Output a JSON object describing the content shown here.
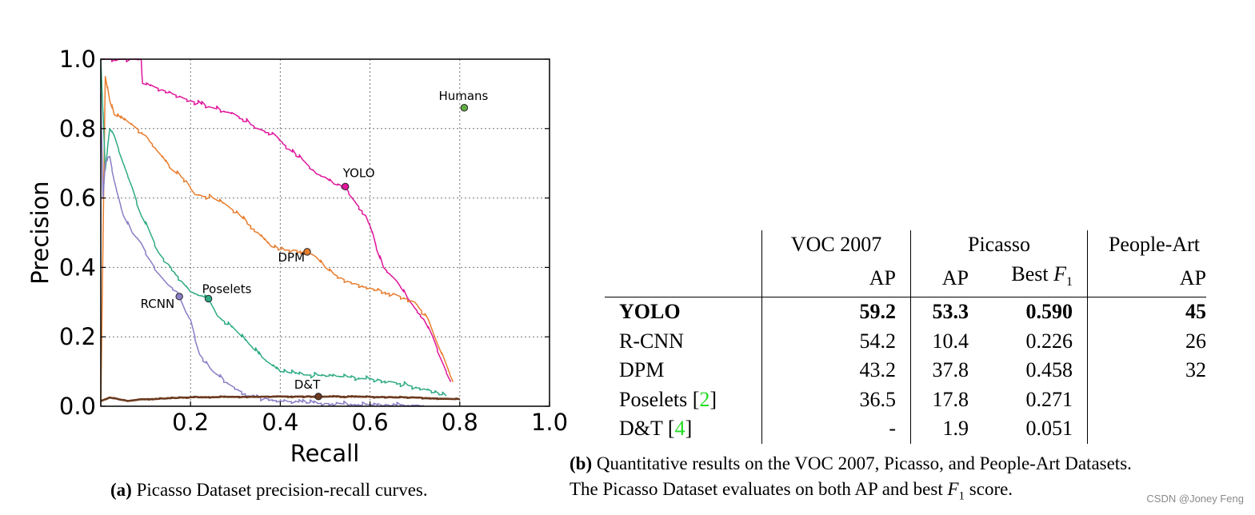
{
  "chart_data": {
    "type": "line",
    "xlabel": "Recall",
    "ylabel": "Precision",
    "xlim": [
      0,
      1.0
    ],
    "ylim": [
      0,
      1.0
    ],
    "xticks": [
      "0.2",
      "0.4",
      "0.6",
      "0.8",
      "1.0"
    ],
    "yticks": [
      "0.0",
      "0.2",
      "0.4",
      "0.6",
      "0.8",
      "1.0"
    ],
    "grid": true,
    "series": [
      {
        "name": "YOLO",
        "color": "#e0169c",
        "x": [
          0.0,
          0.09,
          0.093,
          0.12,
          0.16,
          0.2,
          0.25,
          0.3,
          0.35,
          0.39,
          0.42,
          0.45,
          0.48,
          0.5,
          0.52,
          0.545,
          0.56,
          0.59,
          0.6,
          0.61,
          0.615,
          0.63,
          0.66,
          0.69,
          0.72,
          0.74,
          0.76,
          0.78
        ],
        "y": [
          1.0,
          1.0,
          0.93,
          0.92,
          0.9,
          0.88,
          0.86,
          0.84,
          0.8,
          0.78,
          0.74,
          0.71,
          0.67,
          0.66,
          0.64,
          0.633,
          0.6,
          0.55,
          0.52,
          0.48,
          0.45,
          0.4,
          0.36,
          0.3,
          0.25,
          0.2,
          0.13,
          0.07
        ]
      },
      {
        "name": "DPM",
        "color": "#e87d2e",
        "x": [
          0.0,
          0.01,
          0.02,
          0.03,
          0.06,
          0.1,
          0.13,
          0.16,
          0.18,
          0.19,
          0.21,
          0.25,
          0.28,
          0.31,
          0.35,
          0.38,
          0.41,
          0.43,
          0.46,
          0.48,
          0.5,
          0.52,
          0.55,
          0.6,
          0.66,
          0.7,
          0.73,
          0.75,
          0.77,
          0.785
        ],
        "y": [
          0.0,
          0.95,
          0.88,
          0.84,
          0.82,
          0.78,
          0.73,
          0.68,
          0.66,
          0.65,
          0.61,
          0.6,
          0.58,
          0.55,
          0.5,
          0.46,
          0.45,
          0.45,
          0.445,
          0.43,
          0.4,
          0.38,
          0.36,
          0.34,
          0.32,
          0.3,
          0.25,
          0.18,
          0.12,
          0.07
        ]
      },
      {
        "name": "Poselets",
        "color": "#2eaa84",
        "x": [
          0.0,
          0.01,
          0.02,
          0.03,
          0.05,
          0.07,
          0.09,
          0.11,
          0.13,
          0.15,
          0.18,
          0.2,
          0.24,
          0.26,
          0.3,
          0.33,
          0.36,
          0.4,
          0.46,
          0.55,
          0.65,
          0.72,
          0.77
        ],
        "y": [
          1.0,
          0.68,
          0.8,
          0.78,
          0.7,
          0.63,
          0.55,
          0.5,
          0.44,
          0.41,
          0.36,
          0.33,
          0.31,
          0.26,
          0.22,
          0.18,
          0.14,
          0.1,
          0.09,
          0.085,
          0.07,
          0.05,
          0.03
        ]
      },
      {
        "name": "RCNN",
        "color": "#8a7ec6",
        "x": [
          0.0,
          0.005,
          0.01,
          0.02,
          0.03,
          0.04,
          0.05,
          0.07,
          0.09,
          0.11,
          0.13,
          0.15,
          0.17,
          0.175,
          0.19,
          0.2,
          0.22,
          0.25,
          0.29,
          0.33,
          0.4,
          0.5,
          0.6,
          0.72
        ],
        "y": [
          0.9,
          0.6,
          0.7,
          0.72,
          0.65,
          0.6,
          0.55,
          0.5,
          0.47,
          0.42,
          0.38,
          0.35,
          0.33,
          0.316,
          0.27,
          0.25,
          0.15,
          0.1,
          0.06,
          0.03,
          0.015,
          0.008,
          0.004,
          0.002
        ]
      },
      {
        "name": "D&T",
        "color": "#6b3a1f",
        "x": [
          0.0,
          0.02,
          0.04,
          0.06,
          0.09,
          0.14,
          0.2,
          0.3,
          0.4,
          0.485,
          0.6,
          0.7,
          0.8
        ],
        "y": [
          0.015,
          0.025,
          0.02,
          0.015,
          0.02,
          0.022,
          0.026,
          0.027,
          0.028,
          0.028,
          0.027,
          0.025,
          0.02
        ]
      }
    ],
    "points": [
      {
        "name": "Humans",
        "x": 0.81,
        "y": 0.86,
        "color": "#63ad44"
      },
      {
        "name": "YOLO",
        "x": 0.545,
        "y": 0.633,
        "color": "#e0169c"
      },
      {
        "name": "DPM",
        "x": 0.46,
        "y": 0.445,
        "color": "#e87d2e"
      },
      {
        "name": "Poselets",
        "x": 0.24,
        "y": 0.31,
        "color": "#2eaa84"
      },
      {
        "name": "RCNN",
        "x": 0.175,
        "y": 0.316,
        "color": "#8a7ec6"
      },
      {
        "name": "D&T",
        "x": 0.485,
        "y": 0.028,
        "color": "#6b3a1f"
      }
    ]
  },
  "caption_a": {
    "tag": "(a)",
    "text": " Picasso Dataset precision-recall curves."
  },
  "caption_b": {
    "tag": "(b)",
    "line1": " Quantitative results on the VOC 2007, Picasso, and People-Art Datasets.",
    "line2_pre": "The Picasso Dataset evaluates on both AP and best ",
    "f_symbol": "F",
    "f_sub": "1",
    "line2_post": " score."
  },
  "table": {
    "groups": [
      "VOC 2007",
      "Picasso",
      "People-Art"
    ],
    "subheaders": [
      "AP",
      "AP",
      "Best",
      "AP"
    ],
    "rows": [
      {
        "method": "YOLO",
        "ref": "",
        "voc": "59.2",
        "pic_ap": "53.3",
        "pic_f1": "0.590",
        "people": "45",
        "bold": true
      },
      {
        "method": "R-CNN",
        "ref": "",
        "voc": "54.2",
        "pic_ap": "10.4",
        "pic_f1": "0.226",
        "people": "26"
      },
      {
        "method": "DPM",
        "ref": "",
        "voc": "43.2",
        "pic_ap": "37.8",
        "pic_f1": "0.458",
        "people": "32"
      },
      {
        "method": "Poselets",
        "ref": "2",
        "voc": "36.5",
        "pic_ap": "17.8",
        "pic_f1": "0.271",
        "people": ""
      },
      {
        "method": "D&T",
        "ref": "4",
        "voc": "-",
        "pic_ap": "1.9",
        "pic_f1": "0.051",
        "people": ""
      }
    ]
  },
  "watermark": "CSDN @Joney Feng"
}
